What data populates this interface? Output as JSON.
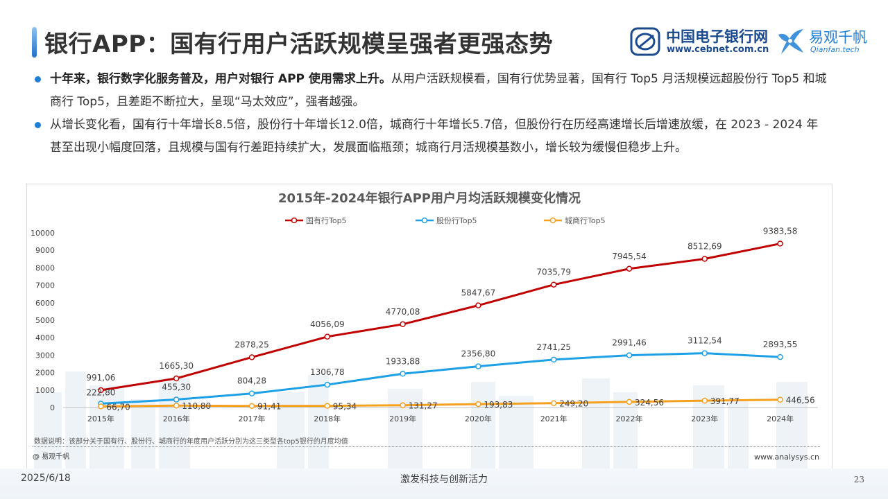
{
  "header": {
    "title": "银行APP：国有行用户活跃规模呈强者更强态势",
    "logo_cebnet_name": "中国电子银行网",
    "logo_cebnet_url": "www.cebnet.com.cn",
    "logo_qianfan_name": "易观千帆",
    "logo_qianfan_en": "Qianfan.tech"
  },
  "bullets": [
    {
      "bold": "十年来，银行数字化服务普及，用户对银行 APP 使用需求上升。",
      "text": "从用户活跃规模看，国有行优势显著，国有行 Top5 月活规模远超股份行 Top5 和城商行 Top5，且差距不断拉大，呈现“马太效应”，强者越强。"
    },
    {
      "bold": "",
      "text": "从增长变化看，国有行十年增长8.5倍，股份行十年增长12.0倍，城商行十年增长5.7倍，但股份行在历经高速增长后增速放缓，在 2023 - 2024 年甚至出现小幅度回落，且规模与国有行差距持续扩大，发展面临瓶颈；城商行月活规模基数小，增长较为缓慢但稳步上升。"
    }
  ],
  "chart_data": {
    "type": "line",
    "title": "2015年-2024年银行APP用户月均活跃规模变化情况",
    "categories": [
      "2015年",
      "2016年",
      "2017年",
      "2018年",
      "2019年",
      "2020年",
      "2021年",
      "2022年",
      "2023年",
      "2024年"
    ],
    "ylim": [
      0,
      10000
    ],
    "yticks": [
      0,
      1000,
      2000,
      3000,
      4000,
      5000,
      6000,
      7000,
      8000,
      9000,
      10000
    ],
    "grid": false,
    "legend_position": "top-center",
    "series": [
      {
        "name": "国有行Top5",
        "color": "#c00000",
        "values": [
          991.06,
          1665.3,
          2878.25,
          4056.09,
          4770.08,
          5847.67,
          7035.79,
          7945.54,
          8512.69,
          9383.58
        ],
        "labels": [
          "991,06",
          "1665,30",
          "2878,25",
          "4056,09",
          "4770,08",
          "5847,67",
          "7035,79",
          "7945,54",
          "8512,69",
          "9383,58"
        ]
      },
      {
        "name": "股份行Top5",
        "color": "#1ea0e6",
        "values": [
          222.8,
          455.3,
          804.28,
          1306.78,
          1933.88,
          2356.8,
          2741.25,
          2991.46,
          3112.54,
          2893.55
        ],
        "labels": [
          "222,80",
          "455,30",
          "804,28",
          "1306,78",
          "1933,88",
          "2356,80",
          "2741,25",
          "2991,46",
          "3112,54",
          "2893,55"
        ]
      },
      {
        "name": "城商行Top5",
        "color": "#f5a01e",
        "values": [
          66.7,
          110.8,
          91.41,
          95.34,
          131.27,
          193.83,
          249.2,
          324.56,
          391.77,
          446.56
        ],
        "labels": [
          "66,70",
          "110,80",
          "91,41",
          "95,34",
          "131,27",
          "193,83",
          "249,20",
          "324,56",
          "391,77",
          "446,56"
        ]
      }
    ]
  },
  "chart_note": "数据说明：该部分关于国有行、股份行、城商行的年度用户活跃分别为这三类型各top5银行的月度均值",
  "chart_source": "@ 易观千帆",
  "chart_site": "www.analysys.cn",
  "footer": {
    "date": "2025/6/18",
    "slogan": "激发科技与创新活力",
    "page": "23"
  }
}
